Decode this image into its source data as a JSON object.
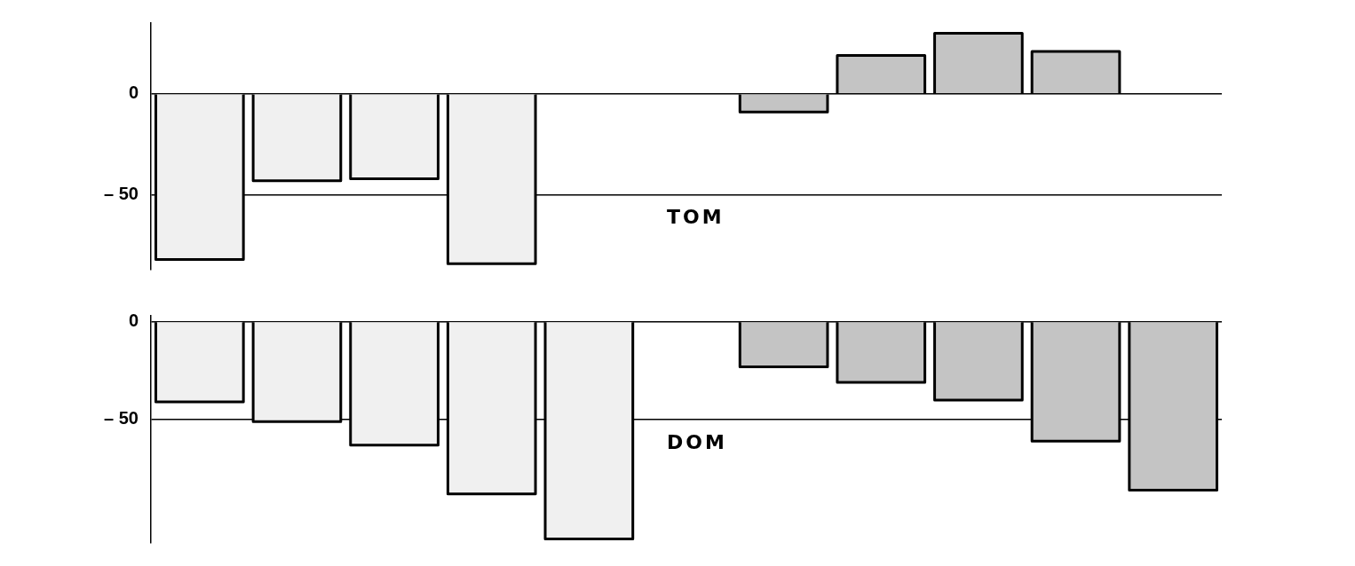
{
  "chart_data": [
    {
      "type": "bar",
      "categories": [
        null,
        null,
        null,
        null,
        null,
        null,
        null,
        null,
        null,
        null,
        null
      ],
      "series": [
        {
          "color": "#f0f0f0",
          "values": [
            -82,
            -43,
            -42,
            -84,
            null,
            null,
            null,
            null,
            null,
            null,
            null
          ]
        },
        {
          "color": "#c4c4c4",
          "values": [
            null,
            null,
            null,
            null,
            null,
            null,
            -9,
            19,
            30,
            21,
            null
          ]
        }
      ],
      "ylim": [
        -87,
        35
      ],
      "yticks": [
        0,
        {
          "value": -50,
          "label": "– 50"
        }
      ],
      "grid": "y",
      "legend": false,
      "tick_labels": "y",
      "annotations": [
        "TOM"
      ]
    },
    {
      "type": "bar",
      "categories": [
        null,
        null,
        null,
        null,
        null,
        null,
        null,
        null,
        null,
        null,
        null
      ],
      "series": [
        {
          "color": "#f0f0f0",
          "values": [
            -41,
            -51,
            -63,
            -88,
            -111,
            null,
            null,
            null,
            null,
            null,
            null
          ]
        },
        {
          "color": "#c4c4c4",
          "values": [
            null,
            null,
            null,
            null,
            null,
            null,
            -23,
            -31,
            -40,
            -61,
            -86
          ]
        }
      ],
      "ylim": [
        -113,
        3
      ],
      "yticks": [
        0,
        {
          "value": -50,
          "label": "– 50"
        }
      ],
      "grid": "y",
      "legend": false,
      "tick_labels": "y",
      "annotations": [
        "DOM"
      ]
    }
  ]
}
